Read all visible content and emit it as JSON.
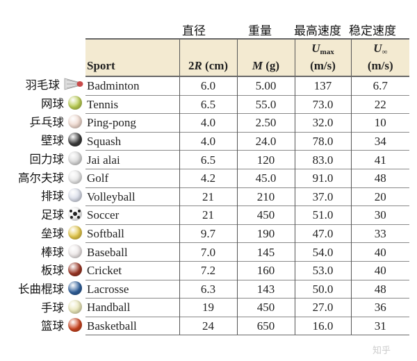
{
  "chinese_headers": [
    "直径",
    "重量",
    "最高速度",
    "稳定速度"
  ],
  "table": {
    "headers": {
      "sport": "Sport",
      "diameter_sym": "2R",
      "diameter_unit": "(cm)",
      "mass_sym": "M",
      "mass_unit": "(g)",
      "umax_sym": "U",
      "umax_sub": "max",
      "umax_unit": "(m/s)",
      "uinf_sym": "U",
      "uinf_sub": "∞",
      "uinf_unit": "(m/s)"
    },
    "rows": [
      {
        "cn": "羽毛球",
        "icon": "shuttlecock-icon",
        "color": "#c84a4a",
        "sport": "Badminton",
        "d": "6.0",
        "m": "5.00",
        "umax": "137",
        "uinf": "6.7"
      },
      {
        "cn": "网球",
        "icon": "tennis-ball-icon",
        "color": "#b9cc52",
        "sport": "Tennis",
        "d": "6.5",
        "m": "55.0",
        "umax": "73.0",
        "uinf": "22"
      },
      {
        "cn": "乒乓球",
        "icon": "ping-pong-ball-icon",
        "color": "#efd9cf",
        "sport": "Ping-pong",
        "d": "4.0",
        "m": "2.50",
        "umax": "32.0",
        "uinf": "10"
      },
      {
        "cn": "壁球",
        "icon": "squash-ball-icon",
        "color": "#3a3a3a",
        "sport": "Squash",
        "d": "4.0",
        "m": "24.0",
        "umax": "78.0",
        "uinf": "34"
      },
      {
        "cn": "回力球",
        "icon": "jai-alai-ball-icon",
        "color": "#d9d9d9",
        "sport": "Jai alai",
        "d": "6.5",
        "m": "120",
        "umax": "83.0",
        "uinf": "41"
      },
      {
        "cn": "高尔夫球",
        "icon": "golf-ball-icon",
        "color": "#e6e6e6",
        "sport": "Golf",
        "d": "4.2",
        "m": "45.0",
        "umax": "91.0",
        "uinf": "48"
      },
      {
        "cn": "排球",
        "icon": "volleyball-icon",
        "color": "#d8dce8",
        "sport": "Volleyball",
        "d": "21",
        "m": "210",
        "umax": "37.0",
        "uinf": "20"
      },
      {
        "cn": "足球",
        "icon": "soccer-ball-icon",
        "color": "#f2f2f2",
        "sport": "Soccer",
        "d": "21",
        "m": "450",
        "umax": "51.0",
        "uinf": "30"
      },
      {
        "cn": "垒球",
        "icon": "softball-icon",
        "color": "#e2c64a",
        "sport": "Softball",
        "d": "9.7",
        "m": "190",
        "umax": "47.0",
        "uinf": "33"
      },
      {
        "cn": "棒球",
        "icon": "baseball-icon",
        "color": "#ece6e6",
        "sport": "Baseball",
        "d": "7.0",
        "m": "145",
        "umax": "54.0",
        "uinf": "40"
      },
      {
        "cn": "板球",
        "icon": "cricket-ball-icon",
        "color": "#9a3524",
        "sport": "Cricket",
        "d": "7.2",
        "m": "160",
        "umax": "53.0",
        "uinf": "40"
      },
      {
        "cn": "长曲棍球",
        "icon": "lacrosse-ball-icon",
        "color": "#2f5f9a",
        "sport": "Lacrosse",
        "d": "6.3",
        "m": "143",
        "umax": "50.0",
        "uinf": "48"
      },
      {
        "cn": "手球",
        "icon": "handball-icon",
        "color": "#e9e6b8",
        "sport": "Handball",
        "d": "19",
        "m": "450",
        "umax": "27.0",
        "uinf": "36"
      },
      {
        "cn": "篮球",
        "icon": "basketball-icon",
        "color": "#c8431f",
        "sport": "Basketball",
        "d": "24",
        "m": "650",
        "umax": "16.0",
        "uinf": "31"
      }
    ]
  },
  "watermark": "知乎"
}
